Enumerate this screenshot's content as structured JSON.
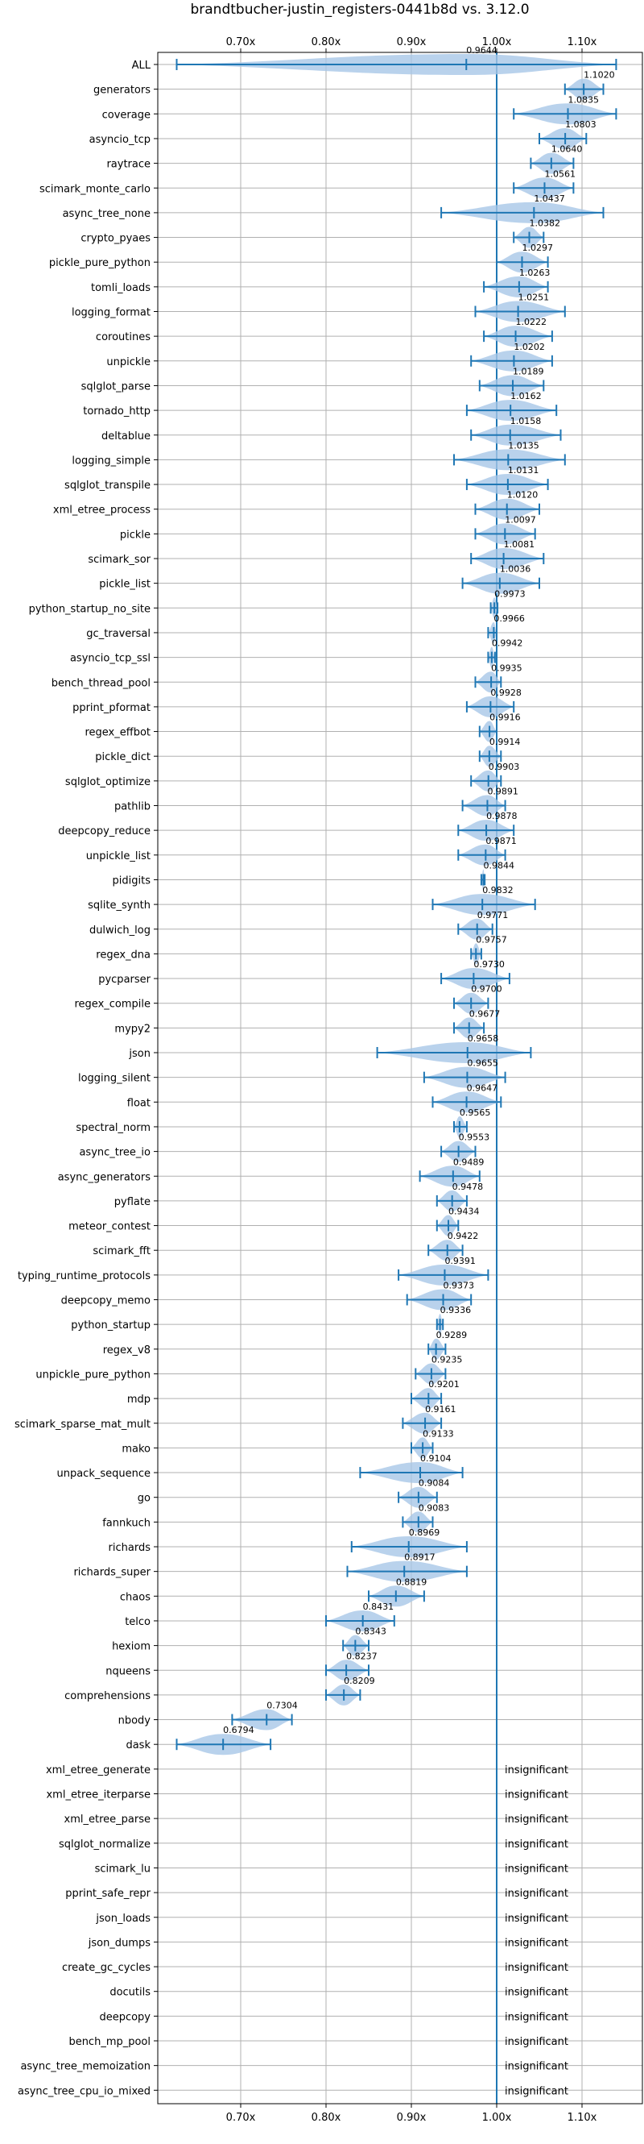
{
  "chart_data": {
    "type": "violin",
    "title": "brandtbucher-justin_registers-0441b8d vs. 3.12.0",
    "xlabel": "",
    "ylabel": "",
    "xlim": [
      0.6,
      1.15
    ],
    "x_ticks": [
      0.7,
      0.8,
      0.9,
      1.0,
      1.1
    ],
    "x_tick_labels": [
      "0.70x",
      "0.80x",
      "0.90x",
      "1.00x",
      "1.10x"
    ],
    "reference_line": 1.0,
    "grid": true,
    "colors": {
      "violin": "#a7c7e7",
      "line": "#1f77b4",
      "grid": "#b0b0b0"
    },
    "insignificant_text": "insignificant",
    "categories": [
      "ALL",
      "generators",
      "coverage",
      "asyncio_tcp",
      "raytrace",
      "scimark_monte_carlo",
      "async_tree_none",
      "crypto_pyaes",
      "pickle_pure_python",
      "tomli_loads",
      "logging_format",
      "coroutines",
      "unpickle",
      "sqlglot_parse",
      "tornado_http",
      "deltablue",
      "logging_simple",
      "sqlglot_transpile",
      "xml_etree_process",
      "pickle",
      "scimark_sor",
      "pickle_list",
      "python_startup_no_site",
      "gc_traversal",
      "asyncio_tcp_ssl",
      "bench_thread_pool",
      "pprint_pformat",
      "regex_effbot",
      "pickle_dict",
      "sqlglot_optimize",
      "pathlib",
      "deepcopy_reduce",
      "unpickle_list",
      "pidigits",
      "sqlite_synth",
      "dulwich_log",
      "regex_dna",
      "pycparser",
      "regex_compile",
      "mypy2",
      "json",
      "logging_silent",
      "float",
      "spectral_norm",
      "async_tree_io",
      "async_generators",
      "pyflate",
      "meteor_contest",
      "scimark_fft",
      "typing_runtime_protocols",
      "deepcopy_memo",
      "python_startup",
      "regex_v8",
      "unpickle_pure_python",
      "mdp",
      "scimark_sparse_mat_mult",
      "mako",
      "unpack_sequence",
      "go",
      "fannkuch",
      "richards",
      "richards_super",
      "chaos",
      "telco",
      "hexiom",
      "nqueens",
      "comprehensions",
      "nbody",
      "dask",
      "xml_etree_generate",
      "xml_etree_iterparse",
      "xml_etree_parse",
      "sqlglot_normalize",
      "scimark_lu",
      "pprint_safe_repr",
      "json_loads",
      "json_dumps",
      "create_gc_cycles",
      "docutils",
      "deepcopy",
      "bench_mp_pool",
      "async_tree_memoization",
      "async_tree_cpu_io_mixed"
    ],
    "series": [
      {
        "name": "ALL",
        "mean": 0.9644,
        "label": "0.9644",
        "min": 0.625,
        "max": 1.14
      },
      {
        "name": "generators",
        "mean": 1.102,
        "label": "1.1020",
        "min": 1.08,
        "max": 1.125
      },
      {
        "name": "coverage",
        "mean": 1.0835,
        "label": "1.0835",
        "min": 1.02,
        "max": 1.14
      },
      {
        "name": "asyncio_tcp",
        "mean": 1.0803,
        "label": "1.0803",
        "min": 1.05,
        "max": 1.105
      },
      {
        "name": "raytrace",
        "mean": 1.064,
        "label": "1.0640",
        "min": 1.04,
        "max": 1.09
      },
      {
        "name": "scimark_monte_carlo",
        "mean": 1.0561,
        "label": "1.0561",
        "min": 1.02,
        "max": 1.09
      },
      {
        "name": "async_tree_none",
        "mean": 1.0437,
        "label": "1.0437",
        "min": 0.935,
        "max": 1.125
      },
      {
        "name": "crypto_pyaes",
        "mean": 1.0382,
        "label": "1.0382",
        "min": 1.02,
        "max": 1.055
      },
      {
        "name": "pickle_pure_python",
        "mean": 1.0297,
        "label": "1.0297",
        "min": 1.0,
        "max": 1.06
      },
      {
        "name": "tomli_loads",
        "mean": 1.0263,
        "label": "1.0263",
        "min": 0.985,
        "max": 1.06
      },
      {
        "name": "logging_format",
        "mean": 1.0251,
        "label": "1.0251",
        "min": 0.975,
        "max": 1.08
      },
      {
        "name": "coroutines",
        "mean": 1.0222,
        "label": "1.0222",
        "min": 0.985,
        "max": 1.065
      },
      {
        "name": "unpickle",
        "mean": 1.0202,
        "label": "1.0202",
        "min": 0.97,
        "max": 1.065
      },
      {
        "name": "sqlglot_parse",
        "mean": 1.0189,
        "label": "1.0189",
        "min": 0.98,
        "max": 1.055
      },
      {
        "name": "tornado_http",
        "mean": 1.0162,
        "label": "1.0162",
        "min": 0.965,
        "max": 1.07
      },
      {
        "name": "deltablue",
        "mean": 1.0158,
        "label": "1.0158",
        "min": 0.97,
        "max": 1.075
      },
      {
        "name": "logging_simple",
        "mean": 1.0135,
        "label": "1.0135",
        "min": 0.95,
        "max": 1.08
      },
      {
        "name": "sqlglot_transpile",
        "mean": 1.0131,
        "label": "1.0131",
        "min": 0.965,
        "max": 1.06
      },
      {
        "name": "xml_etree_process",
        "mean": 1.012,
        "label": "1.0120",
        "min": 0.975,
        "max": 1.05
      },
      {
        "name": "pickle",
        "mean": 1.0097,
        "label": "1.0097",
        "min": 0.975,
        "max": 1.045
      },
      {
        "name": "scimark_sor",
        "mean": 1.0081,
        "label": "1.0081",
        "min": 0.97,
        "max": 1.055
      },
      {
        "name": "pickle_list",
        "mean": 1.0036,
        "label": "1.0036",
        "min": 0.96,
        "max": 1.05
      },
      {
        "name": "python_startup_no_site",
        "mean": 0.9973,
        "label": "0.9973",
        "min": 0.993,
        "max": 1.001
      },
      {
        "name": "gc_traversal",
        "mean": 0.9966,
        "label": "0.9966",
        "min": 0.99,
        "max": 1.0
      },
      {
        "name": "asyncio_tcp_ssl",
        "mean": 0.9942,
        "label": "0.9942",
        "min": 0.99,
        "max": 0.998
      },
      {
        "name": "bench_thread_pool",
        "mean": 0.9935,
        "label": "0.9935",
        "min": 0.975,
        "max": 1.005
      },
      {
        "name": "pprint_pformat",
        "mean": 0.9928,
        "label": "0.9928",
        "min": 0.965,
        "max": 1.02
      },
      {
        "name": "regex_effbot",
        "mean": 0.9916,
        "label": "0.9916",
        "min": 0.98,
        "max": 1.0
      },
      {
        "name": "pickle_dict",
        "mean": 0.9914,
        "label": "0.9914",
        "min": 0.98,
        "max": 1.005
      },
      {
        "name": "sqlglot_optimize",
        "mean": 0.9903,
        "label": "0.9903",
        "min": 0.97,
        "max": 1.005
      },
      {
        "name": "pathlib",
        "mean": 0.9891,
        "label": "0.9891",
        "min": 0.96,
        "max": 1.01
      },
      {
        "name": "deepcopy_reduce",
        "mean": 0.9878,
        "label": "0.9878",
        "min": 0.955,
        "max": 1.02
      },
      {
        "name": "unpickle_list",
        "mean": 0.9871,
        "label": "0.9871",
        "min": 0.955,
        "max": 1.01
      },
      {
        "name": "pidigits",
        "mean": 0.9844,
        "label": "0.9844",
        "min": 0.982,
        "max": 0.986
      },
      {
        "name": "sqlite_synth",
        "mean": 0.9832,
        "label": "0.9832",
        "min": 0.925,
        "max": 1.045
      },
      {
        "name": "dulwich_log",
        "mean": 0.9771,
        "label": "0.9771",
        "min": 0.955,
        "max": 0.995
      },
      {
        "name": "regex_dna",
        "mean": 0.9757,
        "label": "0.9757",
        "min": 0.97,
        "max": 0.982
      },
      {
        "name": "pycparser",
        "mean": 0.973,
        "label": "0.9730",
        "min": 0.935,
        "max": 1.015
      },
      {
        "name": "regex_compile",
        "mean": 0.97,
        "label": "0.9700",
        "min": 0.95,
        "max": 0.99
      },
      {
        "name": "mypy2",
        "mean": 0.9677,
        "label": "0.9677",
        "min": 0.95,
        "max": 0.985
      },
      {
        "name": "json",
        "mean": 0.9658,
        "label": "0.9658",
        "min": 0.86,
        "max": 1.04
      },
      {
        "name": "logging_silent",
        "mean": 0.9655,
        "label": "0.9655",
        "min": 0.915,
        "max": 1.01
      },
      {
        "name": "float",
        "mean": 0.9647,
        "label": "0.9647",
        "min": 0.925,
        "max": 1.005
      },
      {
        "name": "spectral_norm",
        "mean": 0.9565,
        "label": "0.9565",
        "min": 0.95,
        "max": 0.965
      },
      {
        "name": "async_tree_io",
        "mean": 0.9553,
        "label": "0.9553",
        "min": 0.935,
        "max": 0.975
      },
      {
        "name": "async_generators",
        "mean": 0.9489,
        "label": "0.9489",
        "min": 0.91,
        "max": 0.98
      },
      {
        "name": "pyflate",
        "mean": 0.9478,
        "label": "0.9478",
        "min": 0.93,
        "max": 0.965
      },
      {
        "name": "meteor_contest",
        "mean": 0.9434,
        "label": "0.9434",
        "min": 0.93,
        "max": 0.955
      },
      {
        "name": "scimark_fft",
        "mean": 0.9422,
        "label": "0.9422",
        "min": 0.92,
        "max": 0.96
      },
      {
        "name": "typing_runtime_protocols",
        "mean": 0.9391,
        "label": "0.9391",
        "min": 0.885,
        "max": 0.99
      },
      {
        "name": "deepcopy_memo",
        "mean": 0.9373,
        "label": "0.9373",
        "min": 0.895,
        "max": 0.97
      },
      {
        "name": "python_startup",
        "mean": 0.9336,
        "label": "0.9336",
        "min": 0.93,
        "max": 0.937
      },
      {
        "name": "regex_v8",
        "mean": 0.9289,
        "label": "0.9289",
        "min": 0.92,
        "max": 0.94
      },
      {
        "name": "unpickle_pure_python",
        "mean": 0.9235,
        "label": "0.9235",
        "min": 0.905,
        "max": 0.94
      },
      {
        "name": "mdp",
        "mean": 0.9201,
        "label": "0.9201",
        "min": 0.9,
        "max": 0.935
      },
      {
        "name": "scimark_sparse_mat_mult",
        "mean": 0.9161,
        "label": "0.9161",
        "min": 0.89,
        "max": 0.935
      },
      {
        "name": "mako",
        "mean": 0.9133,
        "label": "0.9133",
        "min": 0.9,
        "max": 0.925
      },
      {
        "name": "unpack_sequence",
        "mean": 0.9104,
        "label": "0.9104",
        "min": 0.84,
        "max": 0.96
      },
      {
        "name": "go",
        "mean": 0.9084,
        "label": "0.9084",
        "min": 0.885,
        "max": 0.93
      },
      {
        "name": "fannkuch",
        "mean": 0.9083,
        "label": "0.9083",
        "min": 0.89,
        "max": 0.925
      },
      {
        "name": "richards",
        "mean": 0.8969,
        "label": "0.8969",
        "min": 0.83,
        "max": 0.965
      },
      {
        "name": "richards_super",
        "mean": 0.8917,
        "label": "0.8917",
        "min": 0.825,
        "max": 0.965
      },
      {
        "name": "chaos",
        "mean": 0.8819,
        "label": "0.8819",
        "min": 0.85,
        "max": 0.915
      },
      {
        "name": "telco",
        "mean": 0.8431,
        "label": "0.8431",
        "min": 0.8,
        "max": 0.88
      },
      {
        "name": "hexiom",
        "mean": 0.8343,
        "label": "0.8343",
        "min": 0.82,
        "max": 0.85
      },
      {
        "name": "nqueens",
        "mean": 0.8237,
        "label": "0.8237",
        "min": 0.8,
        "max": 0.85
      },
      {
        "name": "comprehensions",
        "mean": 0.8209,
        "label": "0.8209",
        "min": 0.8,
        "max": 0.84
      },
      {
        "name": "nbody",
        "mean": 0.7304,
        "label": "0.7304",
        "min": 0.69,
        "max": 0.76
      },
      {
        "name": "dask",
        "mean": 0.6794,
        "label": "0.6794",
        "min": 0.625,
        "max": 0.735
      },
      {
        "name": "xml_etree_generate",
        "insignificant": true
      },
      {
        "name": "xml_etree_iterparse",
        "insignificant": true
      },
      {
        "name": "xml_etree_parse",
        "insignificant": true
      },
      {
        "name": "sqlglot_normalize",
        "insignificant": true
      },
      {
        "name": "scimark_lu",
        "insignificant": true
      },
      {
        "name": "pprint_safe_repr",
        "insignificant": true
      },
      {
        "name": "json_loads",
        "insignificant": true
      },
      {
        "name": "json_dumps",
        "insignificant": true
      },
      {
        "name": "create_gc_cycles",
        "insignificant": true
      },
      {
        "name": "docutils",
        "insignificant": true
      },
      {
        "name": "deepcopy",
        "insignificant": true
      },
      {
        "name": "bench_mp_pool",
        "insignificant": true
      },
      {
        "name": "async_tree_memoization",
        "insignificant": true
      },
      {
        "name": "async_tree_cpu_io_mixed",
        "insignificant": true
      }
    ]
  }
}
